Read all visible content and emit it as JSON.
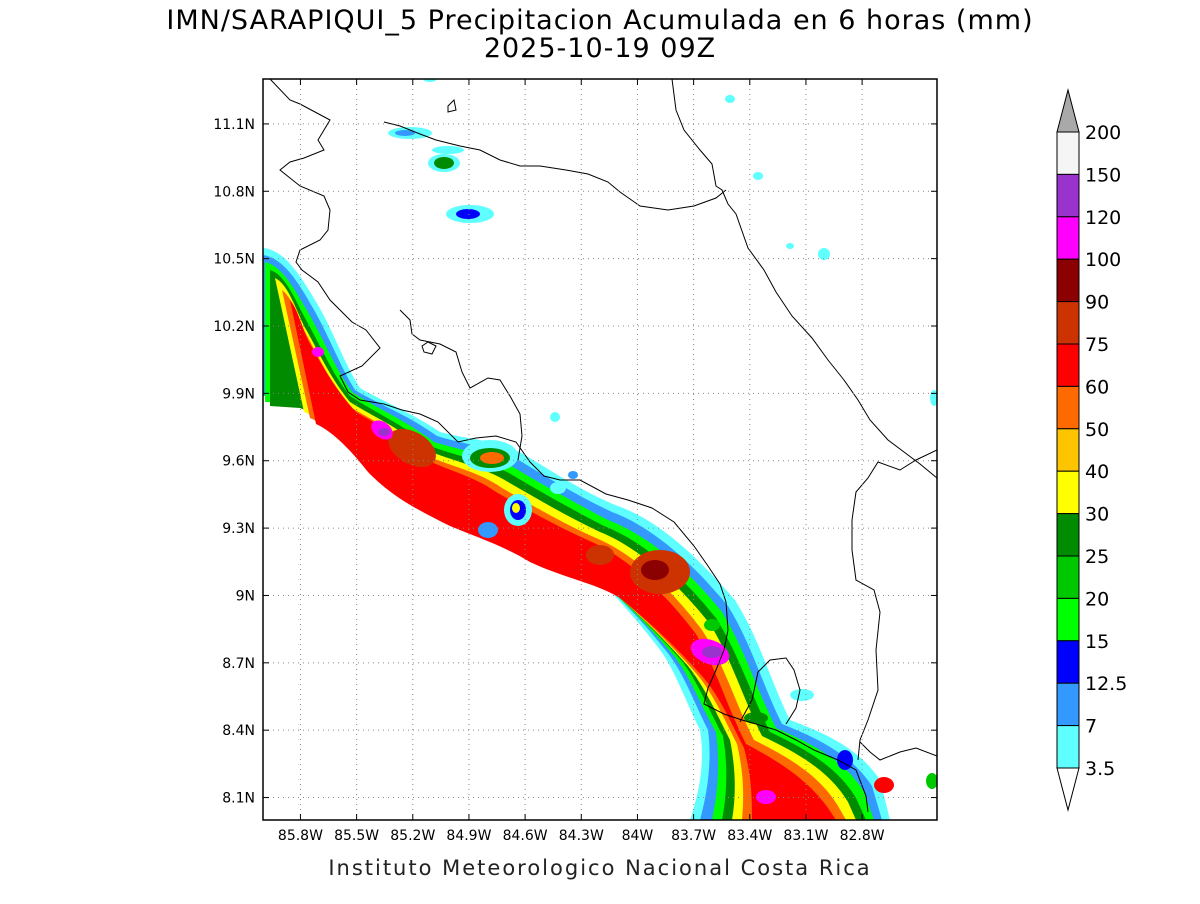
{
  "title": "IMN/SARAPIQUI_5 Precipitacion Acumulada en 6 horas (mm)",
  "subtitle": "2025-10-19 09Z",
  "credit": "Instituto Meteorologico Nacional Costa Rica",
  "map": {
    "lon_range": [
      -86.0,
      -82.4
    ],
    "lat_range": [
      8.0,
      11.3
    ],
    "lon_ticks": [
      "85.8W",
      "85.5W",
      "85.2W",
      "84.9W",
      "84.6W",
      "84.3W",
      "84W",
      "83.7W",
      "83.4W",
      "83.1W",
      "82.8W"
    ],
    "lon_tick_values": [
      -85.8,
      -85.5,
      -85.2,
      -84.9,
      -84.6,
      -84.3,
      -84.0,
      -83.7,
      -83.4,
      -83.1,
      -82.8
    ],
    "lat_ticks": [
      "11.1N",
      "10.8N",
      "10.5N",
      "10.2N",
      "9.9N",
      "9.6N",
      "9.3N",
      "9N",
      "8.7N",
      "8.4N",
      "8.1N"
    ],
    "lat_tick_values": [
      11.1,
      10.8,
      10.5,
      10.2,
      9.9,
      9.6,
      9.3,
      9.0,
      8.7,
      8.4,
      8.1
    ],
    "grid": "dotted"
  },
  "legend": {
    "labels": [
      "200",
      "150",
      "120",
      "100",
      "90",
      "75",
      "60",
      "50",
      "40",
      "30",
      "25",
      "20",
      "15",
      "12.5",
      "7",
      "3.5"
    ],
    "colors": [
      "#f5f5f5",
      "#9a32cd",
      "#ff00ff",
      "#8b0000",
      "#cd3300",
      "#ff0000",
      "#ff6a00",
      "#ffc400",
      "#ffff00",
      "#008b00",
      "#00c800",
      "#00ff00",
      "#0000ff",
      "#3399ff",
      "#5fffff"
    ],
    "top_arrow_color": "#a9a9a9",
    "bottom_arrow_color": "#ffffff"
  },
  "colors": {
    "light_cyan": "#5fffff",
    "sky_blue": "#3399ff",
    "blue": "#0000ff",
    "green": "#00ff00",
    "mid_green": "#00c800",
    "dark_green": "#008b00",
    "yellow": "#ffff00",
    "gold": "#ffc400",
    "orange": "#ff6a00",
    "red": "#ff0000",
    "brick": "#cd3300",
    "dark_red": "#8b0000",
    "magenta": "#ff00ff",
    "purple": "#9a32cd"
  }
}
